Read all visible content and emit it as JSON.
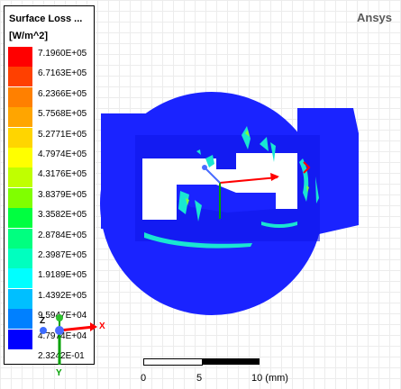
{
  "legend": {
    "title": "Surface Loss ...",
    "unit": "[W/m^2]",
    "labels": [
      "7.1960E+05",
      "6.7163E+05",
      "6.2366E+05",
      "5.7568E+05",
      "5.2771E+05",
      "4.7974E+05",
      "4.3176E+05",
      "3.8379E+05",
      "3.3582E+05",
      "2.8784E+05",
      "2.3987E+05",
      "1.9189E+05",
      "1.4392E+05",
      "9.5947E+04",
      "4.7974E+04",
      "2.3242E-01"
    ],
    "colors": [
      "#ff0000",
      "#ff4000",
      "#ff8000",
      "#ffa500",
      "#ffd500",
      "#ffff00",
      "#c0ff00",
      "#80ff00",
      "#00ff40",
      "#00ff80",
      "#00ffbf",
      "#00ffff",
      "#00bfff",
      "#0080ff",
      "#0000ff"
    ]
  },
  "brand": "Ansys",
  "scale": {
    "ticks": [
      "0",
      "5",
      "10 (mm)"
    ]
  },
  "triad": {
    "x": "X",
    "y": "Y",
    "z": "Z"
  },
  "model_colors": {
    "body": "#1a23ff",
    "hot": "#19e6d2",
    "warm": "#7dff3c",
    "axis_x": "#ff0000",
    "axis_y": "#00a000"
  }
}
